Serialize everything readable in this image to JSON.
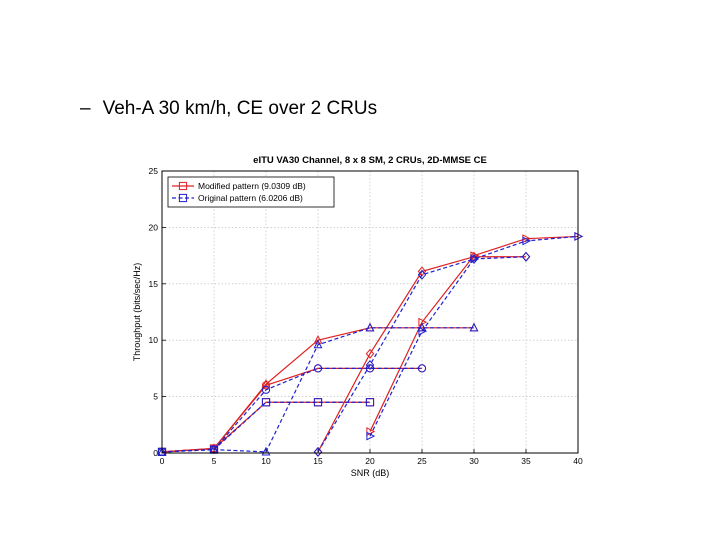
{
  "slide": {
    "bullet_marker": "–",
    "bullet_text": "Veh-A 30 km/h, CE over 2 CRUs"
  },
  "chart_data": {
    "type": "line",
    "title": "eITU VA30 Channel, 8 x 8 SM, 2 CRUs, 2D-MMSE CE",
    "xlabel": "SNR (dB)",
    "ylabel": "Throughput (bits/sec/Hz)",
    "xlim": [
      0,
      40
    ],
    "ylim": [
      0,
      25
    ],
    "xticks": [
      0,
      5,
      10,
      15,
      20,
      25,
      30,
      35,
      40
    ],
    "yticks": [
      0,
      5,
      10,
      15,
      20,
      25
    ],
    "grid": true,
    "legend_position": "top-left",
    "legend": [
      {
        "label": "Modified pattern (9.0309 dB)",
        "color": "#e02020",
        "dash": "solid",
        "marker": "square"
      },
      {
        "label": "Original pattern (6.0206 dB)",
        "color": "#2020d0",
        "dash": "dashed",
        "marker": "square"
      }
    ],
    "series": [
      {
        "group": "Modified pattern (9.0309 dB)",
        "color": "#e02020",
        "dash": "solid",
        "marker": "square",
        "x": [
          0,
          5,
          10,
          15,
          20
        ],
        "y": [
          0.1,
          0.4,
          4.5,
          4.5,
          4.5
        ]
      },
      {
        "group": "Modified pattern (9.0309 dB)",
        "color": "#e02020",
        "dash": "solid",
        "marker": "circle",
        "x": [
          0,
          5,
          10,
          15,
          20,
          25
        ],
        "y": [
          0.1,
          0.4,
          6.0,
          7.5,
          7.5,
          7.5
        ]
      },
      {
        "group": "Modified pattern (9.0309 dB)",
        "color": "#e02020",
        "dash": "solid",
        "marker": "triangle-up",
        "x": [
          0,
          5,
          10,
          15,
          20,
          25,
          30
        ],
        "y": [
          0.1,
          0.4,
          6.1,
          10.0,
          11.1,
          11.1,
          11.1
        ]
      },
      {
        "group": "Modified pattern (9.0309 dB)",
        "color": "#e02020",
        "dash": "solid",
        "marker": "diamond",
        "x": [
          15,
          20,
          25,
          30,
          35
        ],
        "y": [
          0.1,
          8.8,
          16.1,
          17.4,
          17.4
        ]
      },
      {
        "group": "Modified pattern (9.0309 dB)",
        "color": "#e02020",
        "dash": "solid",
        "marker": "triangle-right",
        "x": [
          20,
          25,
          30,
          35,
          40
        ],
        "y": [
          1.9,
          11.6,
          17.5,
          19.0,
          19.2
        ]
      },
      {
        "group": "Original pattern (6.0206 dB)",
        "color": "#2020d0",
        "dash": "dashed",
        "marker": "square",
        "x": [
          0,
          5,
          10,
          15,
          20
        ],
        "y": [
          0.1,
          0.3,
          4.5,
          4.5,
          4.5
        ]
      },
      {
        "group": "Original pattern (6.0206 dB)",
        "color": "#2020d0",
        "dash": "dashed",
        "marker": "circle",
        "x": [
          0,
          5,
          10,
          15,
          20,
          25
        ],
        "y": [
          0.1,
          0.3,
          5.6,
          7.5,
          7.5,
          7.5
        ]
      },
      {
        "group": "Original pattern (6.0206 dB)",
        "color": "#2020d0",
        "dash": "dashed",
        "marker": "triangle-up",
        "x": [
          0,
          5,
          10,
          15,
          20,
          25,
          30
        ],
        "y": [
          0.1,
          0.3,
          0.1,
          9.6,
          11.1,
          11.1,
          11.1
        ]
      },
      {
        "group": "Original pattern (6.0206 dB)",
        "color": "#2020d0",
        "dash": "dashed",
        "marker": "diamond",
        "x": [
          15,
          20,
          25,
          30,
          35
        ],
        "y": [
          0.1,
          7.8,
          15.8,
          17.2,
          17.4
        ]
      },
      {
        "group": "Original pattern (6.0206 dB)",
        "color": "#2020d0",
        "dash": "dashed",
        "marker": "triangle-right",
        "x": [
          20,
          25,
          30,
          35,
          40
        ],
        "y": [
          1.5,
          10.8,
          17.2,
          18.8,
          19.2
        ]
      }
    ]
  }
}
